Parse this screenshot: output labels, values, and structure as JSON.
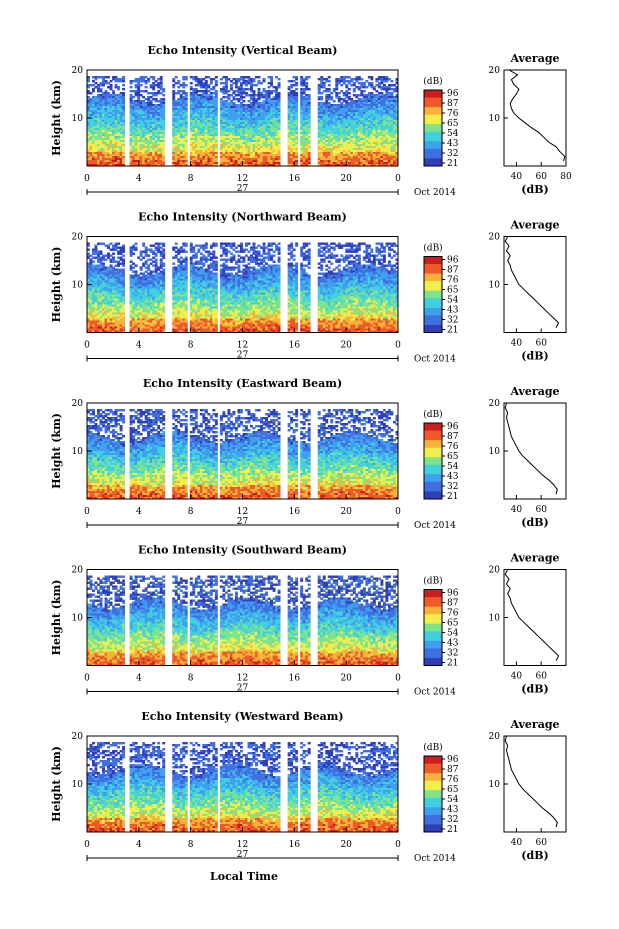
{
  "colorbar": {
    "unit": "(dB)",
    "ticks": [
      "96",
      "87",
      "76",
      "65",
      "54",
      "43",
      "32",
      "21"
    ],
    "colors": [
      "#303fb8",
      "#3f6fe0",
      "#3fa0ee",
      "#40d0e0",
      "#7de38e",
      "#f0ee4c",
      "#f7b23a",
      "#ee5a2a",
      "#cc1e1e"
    ]
  },
  "common": {
    "date_label": "27",
    "month_label": "Oct 2014",
    "xlabel_bottom": "Local Time",
    "profile_title": "Average",
    "profile_xlabel": "(dB)"
  },
  "chart_data": [
    {
      "type": "heatmap",
      "title": "Echo Intensity (Vertical Beam)",
      "ylabel": "Height (km)",
      "xlim": [
        0,
        24
      ],
      "ylim": [
        0,
        20
      ],
      "xticks": [
        "0",
        "4",
        "8",
        "12",
        "16",
        "20",
        "0"
      ],
      "yticks": [
        "10",
        "20"
      ],
      "data_gaps_hours": [
        [
          3.0,
          3.3
        ],
        [
          6.0,
          6.5
        ],
        [
          7.7,
          8.0
        ],
        [
          10.0,
          10.3
        ],
        [
          15.0,
          15.4
        ],
        [
          16.2,
          16.5
        ],
        [
          17.3,
          17.8
        ]
      ],
      "cloud_top_km": 14,
      "profile": {
        "xlim": [
          30,
          80
        ],
        "xticks": [
          "40",
          "60",
          "80"
        ],
        "yticks": [
          "10",
          "20"
        ],
        "heights_km": [
          1,
          2,
          3,
          4,
          5,
          6,
          7,
          8,
          9,
          10,
          11,
          12,
          13,
          14,
          15,
          16,
          17,
          18,
          19,
          20
        ],
        "values_db": [
          78,
          79,
          75,
          72,
          66,
          62,
          58,
          52,
          47,
          42,
          38,
          36,
          35,
          37,
          40,
          42,
          38,
          36,
          41,
          34
        ]
      }
    },
    {
      "type": "heatmap",
      "title": "Echo Intensity (Northward Beam)",
      "ylabel": "Height (km)",
      "xlim": [
        0,
        24
      ],
      "ylim": [
        0,
        20
      ],
      "xticks": [
        "0",
        "4",
        "8",
        "12",
        "16",
        "20",
        "0"
      ],
      "yticks": [
        "10",
        "20"
      ],
      "data_gaps_hours": [
        [
          3.0,
          3.3
        ],
        [
          6.0,
          6.5
        ],
        [
          7.7,
          8.0
        ],
        [
          10.0,
          10.3
        ],
        [
          15.0,
          15.4
        ],
        [
          16.2,
          16.5
        ],
        [
          17.3,
          17.8
        ]
      ],
      "cloud_top_km": 13,
      "profile": {
        "xlim": [
          30,
          80
        ],
        "xticks": [
          "40",
          "60"
        ],
        "yticks": [
          "10",
          "20"
        ],
        "heights_km": [
          1,
          2,
          3,
          4,
          5,
          6,
          7,
          8,
          9,
          10,
          11,
          12,
          13,
          14,
          15,
          16,
          17,
          18,
          19,
          20
        ],
        "values_db": [
          72,
          74,
          70,
          66,
          62,
          58,
          54,
          50,
          46,
          42,
          40,
          38,
          36,
          35,
          33,
          35,
          32,
          34,
          31,
          33
        ]
      }
    },
    {
      "type": "heatmap",
      "title": "Echo Intensity (Eastward Beam)",
      "ylabel": "Height (km)",
      "xlim": [
        0,
        24
      ],
      "ylim": [
        0,
        20
      ],
      "xticks": [
        "0",
        "4",
        "8",
        "12",
        "16",
        "20",
        "0"
      ],
      "yticks": [
        "10",
        "20"
      ],
      "data_gaps_hours": [
        [
          3.0,
          3.3
        ],
        [
          6.0,
          6.5
        ],
        [
          7.7,
          8.0
        ],
        [
          10.0,
          10.3
        ],
        [
          15.0,
          15.4
        ],
        [
          16.2,
          16.5
        ],
        [
          17.3,
          17.8
        ]
      ],
      "cloud_top_km": 13,
      "profile": {
        "xlim": [
          30,
          80
        ],
        "xticks": [
          "40",
          "60"
        ],
        "yticks": [
          "10",
          "20"
        ],
        "heights_km": [
          1,
          2,
          3,
          4,
          5,
          6,
          7,
          8,
          9,
          10,
          11,
          12,
          13,
          14,
          15,
          16,
          17,
          18,
          19,
          20
        ],
        "values_db": [
          72,
          73,
          70,
          66,
          61,
          57,
          53,
          49,
          45,
          42,
          40,
          38,
          36,
          35,
          34,
          33,
          32,
          33,
          31,
          32
        ]
      }
    },
    {
      "type": "heatmap",
      "title": "Echo Intensity (Southward Beam)",
      "ylabel": "Height (km)",
      "xlim": [
        0,
        24
      ],
      "ylim": [
        0,
        20
      ],
      "xticks": [
        "0",
        "4",
        "8",
        "12",
        "16",
        "20",
        "0"
      ],
      "yticks": [
        "10",
        "20"
      ],
      "data_gaps_hours": [
        [
          3.0,
          3.3
        ],
        [
          6.0,
          6.5
        ],
        [
          7.7,
          8.0
        ],
        [
          10.0,
          10.3
        ],
        [
          15.0,
          15.4
        ],
        [
          16.2,
          16.5
        ],
        [
          17.3,
          17.8
        ]
      ],
      "cloud_top_km": 13,
      "profile": {
        "xlim": [
          30,
          80
        ],
        "xticks": [
          "40",
          "60"
        ],
        "yticks": [
          "10",
          "20"
        ],
        "heights_km": [
          1,
          2,
          3,
          4,
          5,
          6,
          7,
          8,
          9,
          10,
          11,
          12,
          13,
          14,
          15,
          16,
          17,
          18,
          19,
          20
        ],
        "values_db": [
          72,
          74,
          70,
          66,
          62,
          58,
          54,
          50,
          46,
          42,
          40,
          38,
          36,
          35,
          33,
          35,
          32,
          34,
          31,
          33
        ]
      }
    },
    {
      "type": "heatmap",
      "title": "Echo Intensity (Westward Beam)",
      "ylabel": "Height (km)",
      "xlim": [
        0,
        24
      ],
      "ylim": [
        0,
        20
      ],
      "xticks": [
        "0",
        "4",
        "8",
        "12",
        "16",
        "20",
        "0"
      ],
      "yticks": [
        "10",
        "20"
      ],
      "data_gaps_hours": [
        [
          3.0,
          3.3
        ],
        [
          6.0,
          6.5
        ],
        [
          7.7,
          8.0
        ],
        [
          10.0,
          10.3
        ],
        [
          15.0,
          15.4
        ],
        [
          16.2,
          16.5
        ],
        [
          17.3,
          17.8
        ]
      ],
      "cloud_top_km": 13,
      "profile": {
        "xlim": [
          30,
          80
        ],
        "xticks": [
          "40",
          "60"
        ],
        "yticks": [
          "10",
          "20"
        ],
        "heights_km": [
          1,
          2,
          3,
          4,
          5,
          6,
          7,
          8,
          9,
          10,
          11,
          12,
          13,
          14,
          15,
          16,
          17,
          18,
          19,
          20
        ],
        "values_db": [
          72,
          73,
          70,
          66,
          61,
          57,
          53,
          49,
          45,
          42,
          40,
          38,
          36,
          35,
          34,
          33,
          32,
          33,
          31,
          32
        ]
      }
    }
  ]
}
